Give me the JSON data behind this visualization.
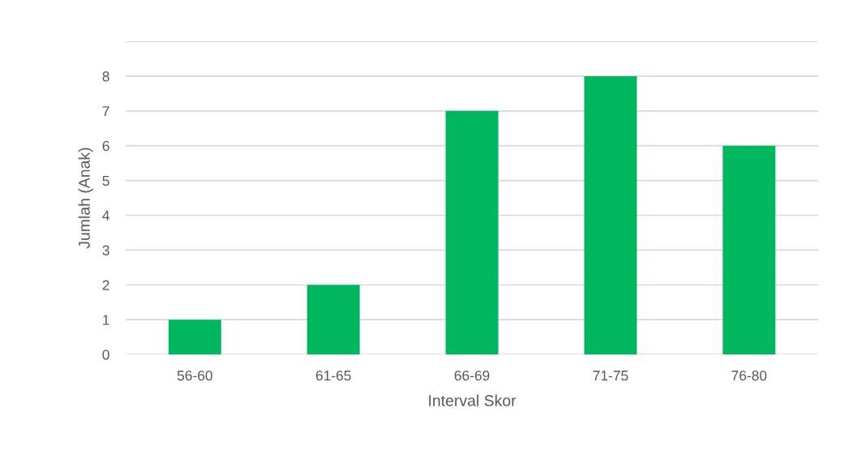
{
  "chart_data": {
    "type": "bar",
    "xlabel": "Interval Skor",
    "ylabel": "Jumlah (Anak)",
    "categories": [
      "56-60",
      "61-65",
      "66-69",
      "71-75",
      "76-80"
    ],
    "values": [
      1,
      2,
      7,
      8,
      6
    ],
    "color": "#00b760",
    "ylim": [
      0,
      9
    ],
    "yticks": [
      0,
      1,
      2,
      3,
      4,
      5,
      6,
      7,
      8,
      {
        "value": 9,
        "label": null
      }
    ],
    "grid": "y"
  }
}
